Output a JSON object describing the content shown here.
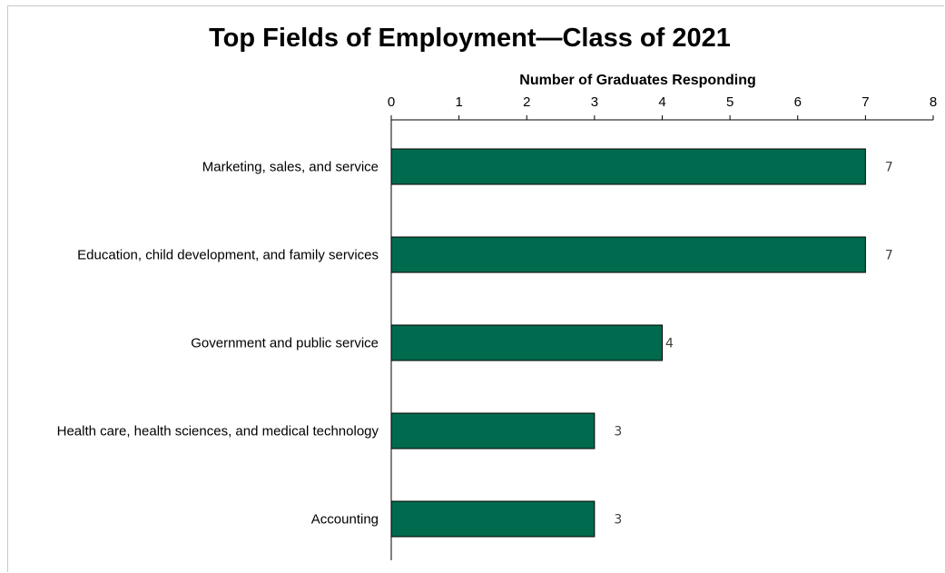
{
  "chart_data": {
    "type": "bar",
    "orientation": "horizontal",
    "title": "Top Fields of Employment—Class of 2021",
    "xlabel": "Number of Graduates Responding",
    "xlim": [
      0,
      8
    ],
    "xticks": [
      "0",
      "1",
      "2",
      "3",
      "4",
      "5",
      "6",
      "7",
      "8"
    ],
    "x_axis_position": "top",
    "grid": false,
    "categories": [
      "Marketing, sales, and service",
      "Education, child development, and family services",
      "Government and public service",
      "Health care, health sciences, and medical technology",
      "Accounting"
    ],
    "values": [
      7,
      7,
      4,
      3,
      3
    ],
    "data_labels": [
      "7",
      "7",
      "4",
      "3",
      "3"
    ],
    "bar_color": "#006a4e",
    "bar_edge_color": "#000000"
  }
}
